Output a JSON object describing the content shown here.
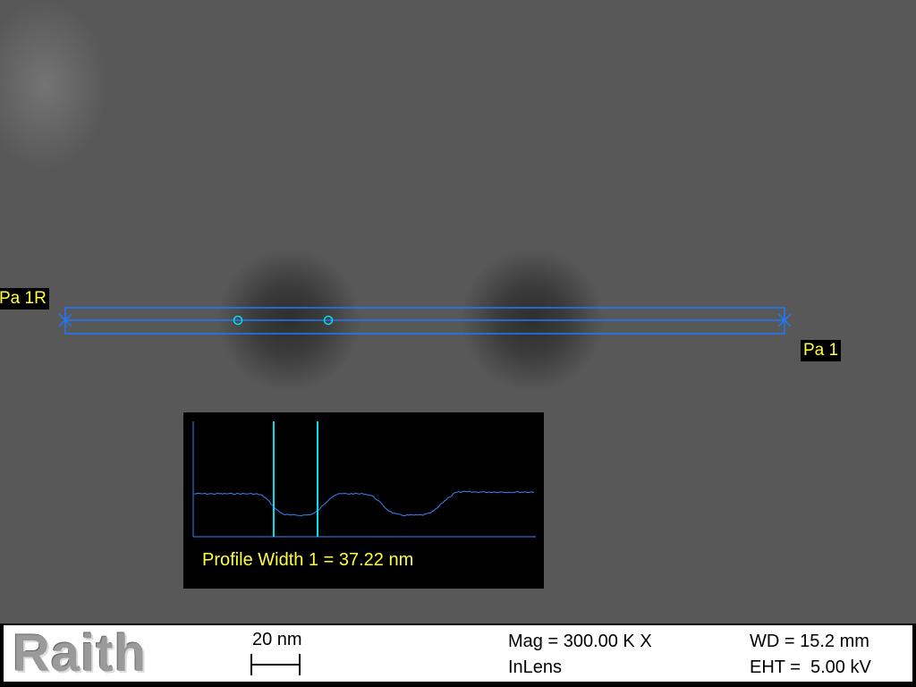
{
  "overlay": {
    "left_marker_label": "Pa 1R",
    "right_marker_label": "Pa 1",
    "colors": {
      "line": "#1e78ff",
      "cursor": "#00e0f0",
      "label": "#ffff3c",
      "trace": "#3c82ff"
    }
  },
  "profile": {
    "width_text": "Profile Width 1 = 37.22 nm"
  },
  "info_bar": {
    "logo": "Raith",
    "scale_label": "20 nm",
    "mag": "Mag = 300.00 K X",
    "detector": "InLens",
    "wd": "WD = 15.2 mm",
    "eht": "EHT =  5.00 kV"
  }
}
